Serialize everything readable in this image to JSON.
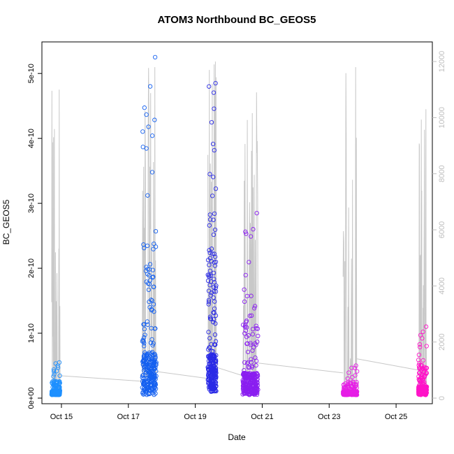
{
  "chart_data": {
    "type": "scatter",
    "title": "ATOM3 Northbound BC_GEOS5",
    "xlabel": "Date",
    "ylabel": "BC_GEOS5",
    "grid": false,
    "legend": "none",
    "x_ticks": [
      {
        "date": "2016-10-15",
        "label": "Oct 15"
      },
      {
        "date": "2016-10-17",
        "label": "Oct 17"
      },
      {
        "date": "2016-10-19",
        "label": "Oct 19"
      },
      {
        "date": "2016-10-21",
        "label": "Oct 21"
      },
      {
        "date": "2016-10-23",
        "label": "Oct 23"
      },
      {
        "date": "2016-10-25",
        "label": "Oct 25"
      }
    ],
    "xlim": [
      "2016-10-14T10:00",
      "2016-10-26T02:00"
    ],
    "y_left": {
      "ylim": [
        0,
        5.4e-10
      ],
      "ticks": [
        0,
        1e-10,
        2e-10,
        3e-10,
        4e-10,
        5e-10
      ],
      "tick_labels": [
        "0e+00",
        "1e-10",
        "2e-10",
        "3e-10",
        "4e-10",
        "5e-10"
      ]
    },
    "y_right": {
      "ylim": [
        0,
        12500
      ],
      "ticks": [
        0,
        2000,
        4000,
        6000,
        8000,
        10000,
        12000
      ],
      "tick_labels": [
        "0",
        "2000",
        "4000",
        "6000",
        "8000",
        "10000",
        "12000"
      ],
      "color": "#bebebe"
    },
    "segments": [
      {
        "name": "",
        "color": "#1e90ff",
        "start": "2016-10-14T17:00",
        "end": "2016-10-14T23:00",
        "bc_range": [
          5e-12,
          5.5e-11
        ],
        "alt_range": [
          100,
          11000
        ]
      },
      {
        "name": "",
        "color": "#1460f0",
        "start": "2016-10-17T10:00",
        "end": "2016-10-17T20:00",
        "bc_range": [
          5e-12,
          5.25e-10
        ],
        "alt_range": [
          500,
          11800
        ]
      },
      {
        "name": "",
        "color": "#2a2ae6",
        "start": "2016-10-19T09:00",
        "end": "2016-10-19T15:00",
        "bc_range": [
          1e-11,
          4.85e-10
        ],
        "alt_range": [
          500,
          12000
        ]
      },
      {
        "name": "",
        "color": "#8a1ef0",
        "start": "2016-10-20T10:00",
        "end": "2016-10-20T21:00",
        "bc_range": [
          5e-12,
          2.85e-10
        ],
        "alt_range": [
          500,
          10900
        ]
      },
      {
        "name": "",
        "color": "#e61ee6",
        "start": "2016-10-23T10:00",
        "end": "2016-10-23T20:00",
        "bc_range": [
          5e-12,
          5e-11
        ],
        "alt_range": [
          200,
          11800
        ]
      },
      {
        "name": "",
        "color": "#ff14c8",
        "start": "2016-10-25T16:00",
        "end": "2016-10-25T22:00",
        "bc_range": [
          5e-12,
          1.1e-10
        ],
        "alt_range": [
          200,
          10300
        ]
      }
    ]
  }
}
